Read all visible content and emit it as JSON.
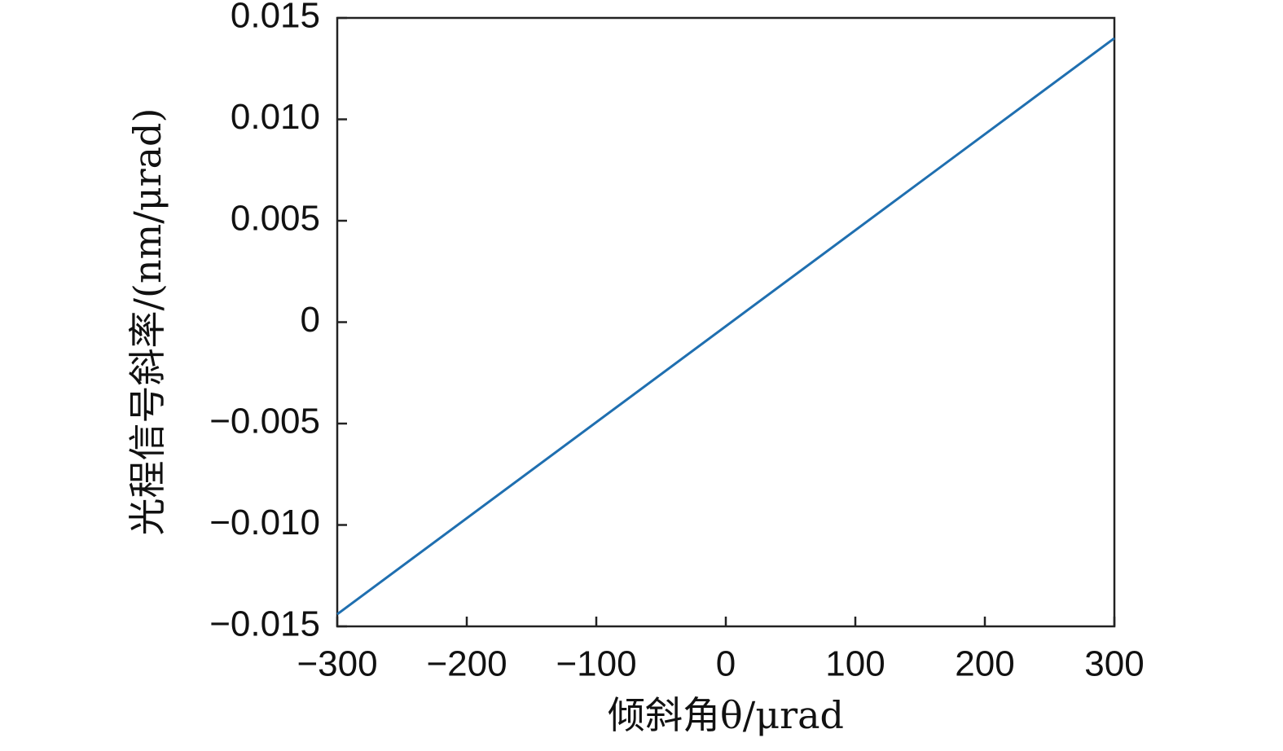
{
  "chart_data": {
    "type": "line",
    "x_label": "倾斜角θ/μrad",
    "y_label": "光程信号斜率/(nm/μrad)",
    "x": [
      -300,
      300
    ],
    "values": [
      -0.0144,
      0.014
    ],
    "color": "#1f6fb0",
    "xlim": [
      -300,
      300
    ],
    "ylim": [
      -0.015,
      0.015
    ],
    "xticks": [
      {
        "value": -300,
        "label": "−300"
      },
      {
        "value": -200,
        "label": "−200"
      },
      {
        "value": -100,
        "label": "−100"
      },
      0,
      100,
      200,
      300
    ],
    "yticks": [
      {
        "value": -0.015,
        "label": "−0.015"
      },
      {
        "value": -0.01,
        "label": "−0.010"
      },
      {
        "value": -0.005,
        "label": "−0.005"
      },
      0,
      0.005,
      {
        "value": 0.01,
        "label": "0.010"
      },
      0.015
    ],
    "grid": false
  }
}
